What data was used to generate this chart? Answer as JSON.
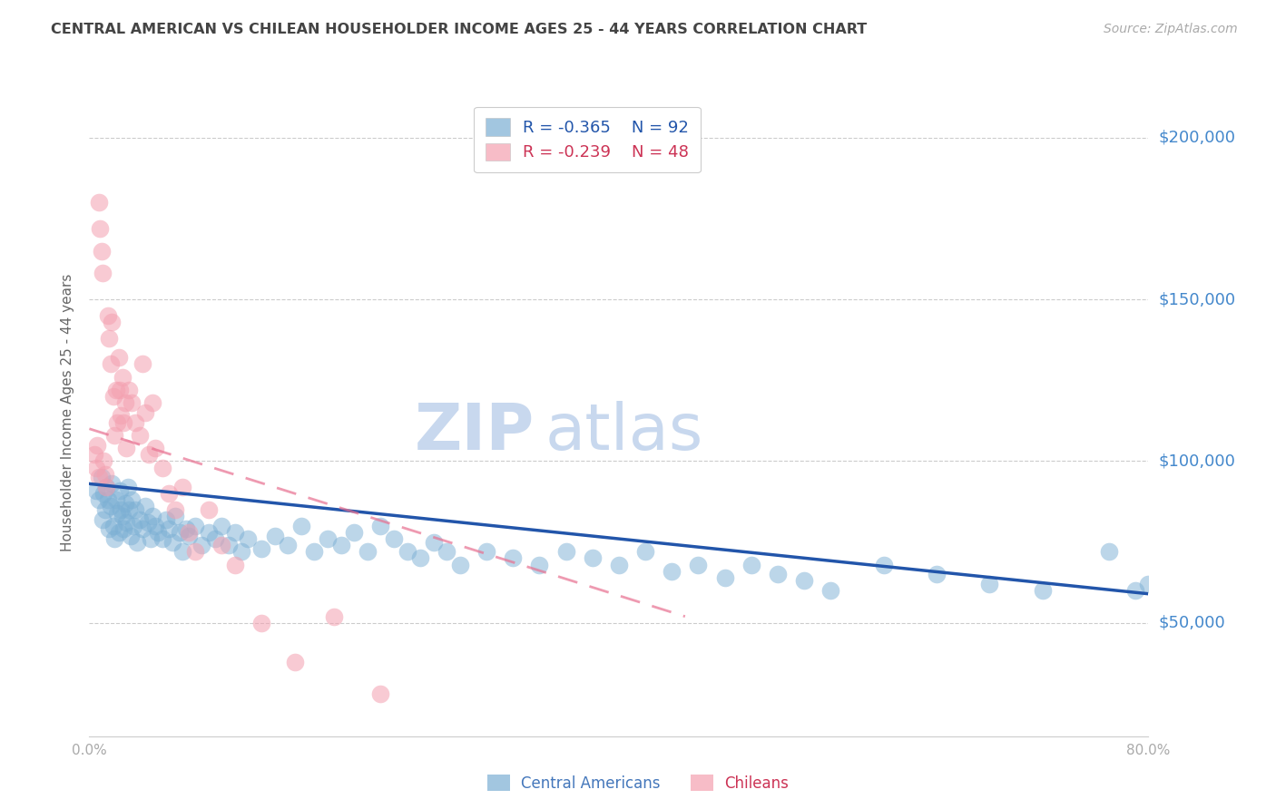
{
  "title": "CENTRAL AMERICAN VS CHILEAN HOUSEHOLDER INCOME AGES 25 - 44 YEARS CORRELATION CHART",
  "source": "Source: ZipAtlas.com",
  "ylabel": "Householder Income Ages 25 - 44 years",
  "ytick_values": [
    50000,
    100000,
    150000,
    200000
  ],
  "ytick_labels": [
    "$50,000",
    "$100,000",
    "$150,000",
    "$200,000"
  ],
  "ymin": 15000,
  "ymax": 215000,
  "xmin": 0.0,
  "xmax": 0.8,
  "legend_blue_r": "-0.365",
  "legend_blue_n": "92",
  "legend_pink_r": "-0.239",
  "legend_pink_n": "48",
  "legend_label_blue": "Central Americans",
  "legend_label_pink": "Chileans",
  "blue_color": "#7BAFD4",
  "pink_color": "#F4A0B0",
  "blue_trend_color": "#2255AA",
  "pink_trend_color": "#E87090",
  "title_color": "#444444",
  "source_color": "#AAAAAA",
  "ytick_color": "#4488CC",
  "xtick_color": "#AAAAAA",
  "grid_color": "#CCCCCC",
  "watermark_zip_color": "#C8D8EE",
  "watermark_atlas_color": "#C8D8EE",
  "blue_x": [
    0.005,
    0.007,
    0.009,
    0.01,
    0.011,
    0.012,
    0.013,
    0.014,
    0.015,
    0.016,
    0.017,
    0.018,
    0.019,
    0.02,
    0.021,
    0.022,
    0.023,
    0.024,
    0.025,
    0.026,
    0.027,
    0.028,
    0.029,
    0.03,
    0.031,
    0.032,
    0.033,
    0.035,
    0.036,
    0.038,
    0.04,
    0.042,
    0.044,
    0.046,
    0.048,
    0.05,
    0.052,
    0.055,
    0.058,
    0.06,
    0.063,
    0.065,
    0.068,
    0.07,
    0.073,
    0.075,
    0.08,
    0.085,
    0.09,
    0.095,
    0.1,
    0.105,
    0.11,
    0.115,
    0.12,
    0.13,
    0.14,
    0.15,
    0.16,
    0.17,
    0.18,
    0.19,
    0.2,
    0.21,
    0.22,
    0.23,
    0.24,
    0.25,
    0.26,
    0.27,
    0.28,
    0.3,
    0.32,
    0.34,
    0.36,
    0.38,
    0.4,
    0.42,
    0.44,
    0.46,
    0.48,
    0.5,
    0.52,
    0.54,
    0.56,
    0.6,
    0.64,
    0.68,
    0.72,
    0.77,
    0.79,
    0.8
  ],
  "blue_y": [
    91000,
    88000,
    95000,
    82000,
    90000,
    85000,
    92000,
    88000,
    79000,
    86000,
    93000,
    80000,
    76000,
    88000,
    84000,
    78000,
    91000,
    85000,
    83000,
    79000,
    87000,
    81000,
    92000,
    85000,
    77000,
    88000,
    80000,
    85000,
    75000,
    82000,
    79000,
    86000,
    81000,
    76000,
    83000,
    80000,
    78000,
    76000,
    82000,
    79000,
    75000,
    83000,
    78000,
    72000,
    79000,
    77000,
    80000,
    74000,
    78000,
    76000,
    80000,
    74000,
    78000,
    72000,
    76000,
    73000,
    77000,
    74000,
    80000,
    72000,
    76000,
    74000,
    78000,
    72000,
    80000,
    76000,
    72000,
    70000,
    75000,
    72000,
    68000,
    72000,
    70000,
    68000,
    72000,
    70000,
    68000,
    72000,
    66000,
    68000,
    64000,
    68000,
    65000,
    63000,
    60000,
    68000,
    65000,
    62000,
    60000,
    72000,
    60000,
    62000
  ],
  "pink_x": [
    0.004,
    0.005,
    0.006,
    0.007,
    0.007,
    0.008,
    0.009,
    0.01,
    0.011,
    0.012,
    0.013,
    0.014,
    0.015,
    0.016,
    0.017,
    0.018,
    0.019,
    0.02,
    0.021,
    0.022,
    0.023,
    0.024,
    0.025,
    0.026,
    0.027,
    0.028,
    0.03,
    0.032,
    0.035,
    0.038,
    0.04,
    0.042,
    0.045,
    0.048,
    0.05,
    0.055,
    0.06,
    0.065,
    0.07,
    0.075,
    0.08,
    0.09,
    0.1,
    0.11,
    0.13,
    0.155,
    0.185,
    0.22
  ],
  "pink_y": [
    102000,
    98000,
    105000,
    95000,
    180000,
    172000,
    165000,
    158000,
    100000,
    96000,
    92000,
    145000,
    138000,
    130000,
    143000,
    120000,
    108000,
    122000,
    112000,
    132000,
    122000,
    114000,
    126000,
    112000,
    118000,
    104000,
    122000,
    118000,
    112000,
    108000,
    130000,
    115000,
    102000,
    118000,
    104000,
    98000,
    90000,
    85000,
    92000,
    78000,
    72000,
    85000,
    74000,
    68000,
    50000,
    38000,
    52000,
    28000
  ],
  "blue_trend_x": [
    0.0,
    0.8
  ],
  "blue_trend_y": [
    93000,
    59000
  ],
  "pink_trend_x": [
    0.0,
    0.45
  ],
  "pink_trend_y": [
    110000,
    52000
  ]
}
